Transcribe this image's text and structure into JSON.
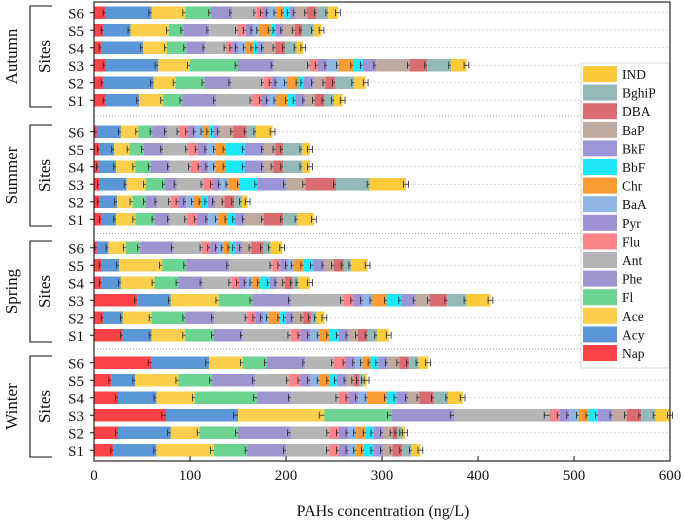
{
  "chart_data": {
    "type": "bar",
    "orientation": "horizontal",
    "stacked": true,
    "xlabel": "PAHs concentration (ng/L)",
    "xlim": [
      0,
      600
    ],
    "xticks": [
      "0",
      "100",
      "200",
      "300",
      "400",
      "500",
      "600"
    ],
    "site_axis_label": "Sites",
    "compounds": [
      "Nap",
      "Acy",
      "Ace",
      "Fl",
      "Phe",
      "Ant",
      "Flu",
      "Pyr",
      "BaA",
      "Chr",
      "BbF",
      "BkF",
      "BaP",
      "DBA",
      "BghiP",
      "IND"
    ],
    "colors": {
      "Nap": "#fc4448",
      "Acy": "#5b96d6",
      "Ace": "#fbcf4c",
      "Fl": "#6cd491",
      "Phe": "#9e95d0",
      "Ant": "#b5b5b5",
      "Flu": "#fb8489",
      "Pyr": "#a08fd2",
      "BaA": "#8fb6e2",
      "Chr": "#fc9b33",
      "BbF": "#1ee8f7",
      "BkF": "#9b96d8",
      "BaP": "#bfa9a0",
      "DBA": "#d96c70",
      "BghiP": "#94b9b6",
      "IND": "#fbcb3c"
    },
    "legend_order": [
      "IND",
      "BghiP",
      "DBA",
      "BaP",
      "BkF",
      "BbF",
      "Chr",
      "BaA",
      "Pyr",
      "Flu",
      "Ant",
      "Phe",
      "Fl",
      "Ace",
      "Acy",
      "Nap"
    ],
    "groups": [
      {
        "season": "Autumn",
        "sites": [
          {
            "site": "S6",
            "values": [
              12,
              48,
              35,
              27,
              22,
              25,
              7,
              6,
              8,
              8,
              6,
              6,
              12,
              10,
              12,
              10
            ]
          },
          {
            "site": "S5",
            "values": [
              10,
              28,
              40,
              15,
              27,
              30,
              8,
              8,
              6,
              12,
              5,
              8,
              12,
              8,
              12,
              8
            ]
          },
          {
            "site": "S4",
            "values": [
              8,
              43,
              25,
              20,
              20,
              22,
              6,
              6,
              8,
              8,
              5,
              6,
              12,
              10,
              12,
              7
            ]
          },
          {
            "site": "S3",
            "values": [
              12,
              55,
              33,
              50,
              37,
              38,
              8,
              10,
              12,
              15,
              10,
              14,
              35,
              18,
              25,
              16
            ]
          },
          {
            "site": "S2",
            "values": [
              10,
              52,
              23,
              30,
              28,
              34,
              8,
              6,
              10,
              12,
              5,
              11,
              12,
              10,
              20,
              12
            ]
          },
          {
            "site": "S1",
            "values": [
              12,
              35,
              25,
              20,
              35,
              38,
              10,
              7,
              8,
              12,
              8,
              10,
              10,
              10,
              10,
              9
            ]
          }
        ]
      },
      {
        "season": "Summer",
        "sites": [
          {
            "site": "S6",
            "values": [
              3,
              25,
              18,
              15,
              15,
              13,
              9,
              8,
              8,
              6,
              5,
              6,
              14,
              14,
              10,
              17
            ]
          },
          {
            "site": "S5",
            "values": [
              6,
              15,
              16,
              15,
              20,
              26,
              10,
              10,
              9,
              10,
              20,
              20,
              12,
              8,
              20,
              8
            ]
          },
          {
            "site": "S4",
            "values": [
              5,
              18,
              20,
              16,
              20,
              22,
              10,
              8,
              8,
              10,
              20,
              20,
              10,
              10,
              20,
              8
            ]
          },
          {
            "site": "S3",
            "values": [
              6,
              28,
              20,
              20,
              12,
              28,
              10,
              8,
              8,
              12,
              18,
              30,
              20,
              32,
              35,
              38
            ]
          },
          {
            "site": "S2",
            "values": [
              6,
              18,
              16,
              14,
              12,
              14,
              8,
              8,
              8,
              8,
              6,
              8,
              10,
              10,
              8,
              6
            ]
          },
          {
            "site": "S1",
            "values": [
              8,
              15,
              20,
              20,
              16,
              18,
              10,
              12,
              10,
              10,
              8,
              10,
              20,
              20,
              15,
              17
            ]
          }
        ]
      },
      {
        "season": "Spring",
        "sites": [
          {
            "site": "S6",
            "values": [
              3,
              12,
              18,
              15,
              35,
              30,
              8,
              8,
              6,
              7,
              5,
              7,
              10,
              12,
              8,
              12
            ]
          },
          {
            "site": "S5",
            "values": [
              8,
              18,
              45,
              25,
              45,
              45,
              8,
              8,
              6,
              10,
              10,
              12,
              10,
              10,
              8,
              17
            ]
          },
          {
            "site": "S4",
            "values": [
              8,
              20,
              35,
              25,
              25,
              30,
              8,
              8,
              6,
              8,
              10,
              8,
              8,
              8,
              6,
              12
            ]
          },
          {
            "site": "S3",
            "values": [
              45,
              35,
              50,
              35,
              40,
              55,
              10,
              10,
              10,
              15,
              15,
              15,
              15,
              18,
              20,
              25
            ]
          },
          {
            "site": "S2",
            "values": [
              10,
              20,
              30,
              35,
              30,
              35,
              8,
              8,
              6,
              12,
              6,
              8,
              10,
              8,
              6,
              8
            ]
          },
          {
            "site": "S1",
            "values": [
              30,
              30,
              35,
              30,
              30,
              50,
              10,
              10,
              10,
              10,
              10,
              10,
              10,
              10,
              10,
              12
            ]
          }
        ]
      },
      {
        "season": "Winter",
        "sites": [
          {
            "site": "S6",
            "values": [
              60,
              60,
              35,
              25,
              40,
              30,
              12,
              10,
              8,
              8,
              8,
              10,
              12,
              10,
              10,
              10
            ]
          },
          {
            "site": "S5",
            "values": [
              18,
              25,
              45,
              35,
              45,
              35,
              12,
              10,
              10,
              10,
              8,
              10,
              8,
              5,
              5,
              3
            ]
          },
          {
            "site": "S4",
            "values": [
              25,
              40,
              40,
              65,
              35,
              50,
              10,
              10,
              10,
              20,
              10,
              12,
              12,
              15,
              15,
              15
            ]
          },
          {
            "site": "S3",
            "values": [
              75,
              75,
              90,
              70,
              65,
              100,
              10,
              10,
              10,
              10,
              10,
              15,
              15,
              15,
              15,
              15
            ]
          },
          {
            "site": "S2",
            "values": [
              25,
              55,
              30,
              40,
              55,
              40,
              10,
              10,
              8,
              10,
              8,
              10,
              10,
              5,
              5,
              3
            ]
          },
          {
            "site": "S1",
            "values": [
              20,
              45,
              60,
              35,
              40,
              45,
              10,
              10,
              8,
              8,
              10,
              10,
              10,
              10,
              10,
              9
            ]
          }
        ]
      }
    ]
  }
}
